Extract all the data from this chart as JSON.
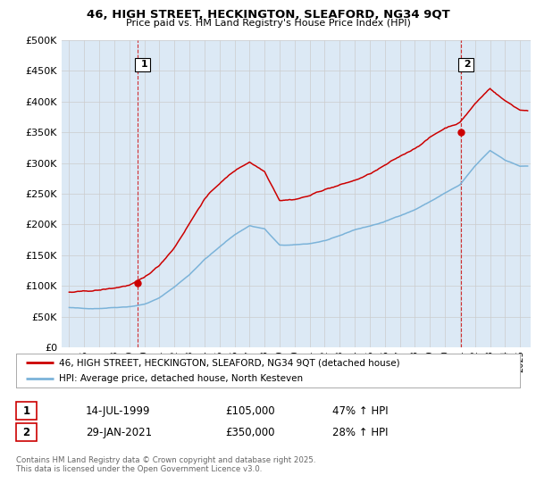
{
  "title": "46, HIGH STREET, HECKINGTON, SLEAFORD, NG34 9QT",
  "subtitle": "Price paid vs. HM Land Registry's House Price Index (HPI)",
  "legend_line1": "46, HIGH STREET, HECKINGTON, SLEAFORD, NG34 9QT (detached house)",
  "legend_line2": "HPI: Average price, detached house, North Kesteven",
  "footnote": "Contains HM Land Registry data © Crown copyright and database right 2025.\nThis data is licensed under the Open Government Licence v3.0.",
  "sale1_label": "1",
  "sale1_date": "14-JUL-1999",
  "sale1_price": "£105,000",
  "sale1_hpi": "47% ↑ HPI",
  "sale2_label": "2",
  "sale2_date": "29-JAN-2021",
  "sale2_price": "£350,000",
  "sale2_hpi": "28% ↑ HPI",
  "red_color": "#cc0000",
  "blue_color": "#7bb3d9",
  "grid_color": "#cccccc",
  "chart_bg": "#dce9f5",
  "background_color": "#ffffff",
  "ylim": [
    0,
    500000
  ],
  "yticks": [
    0,
    50000,
    100000,
    150000,
    200000,
    250000,
    300000,
    350000,
    400000,
    450000,
    500000
  ],
  "xmin": 1994.5,
  "xmax": 2025.7
}
